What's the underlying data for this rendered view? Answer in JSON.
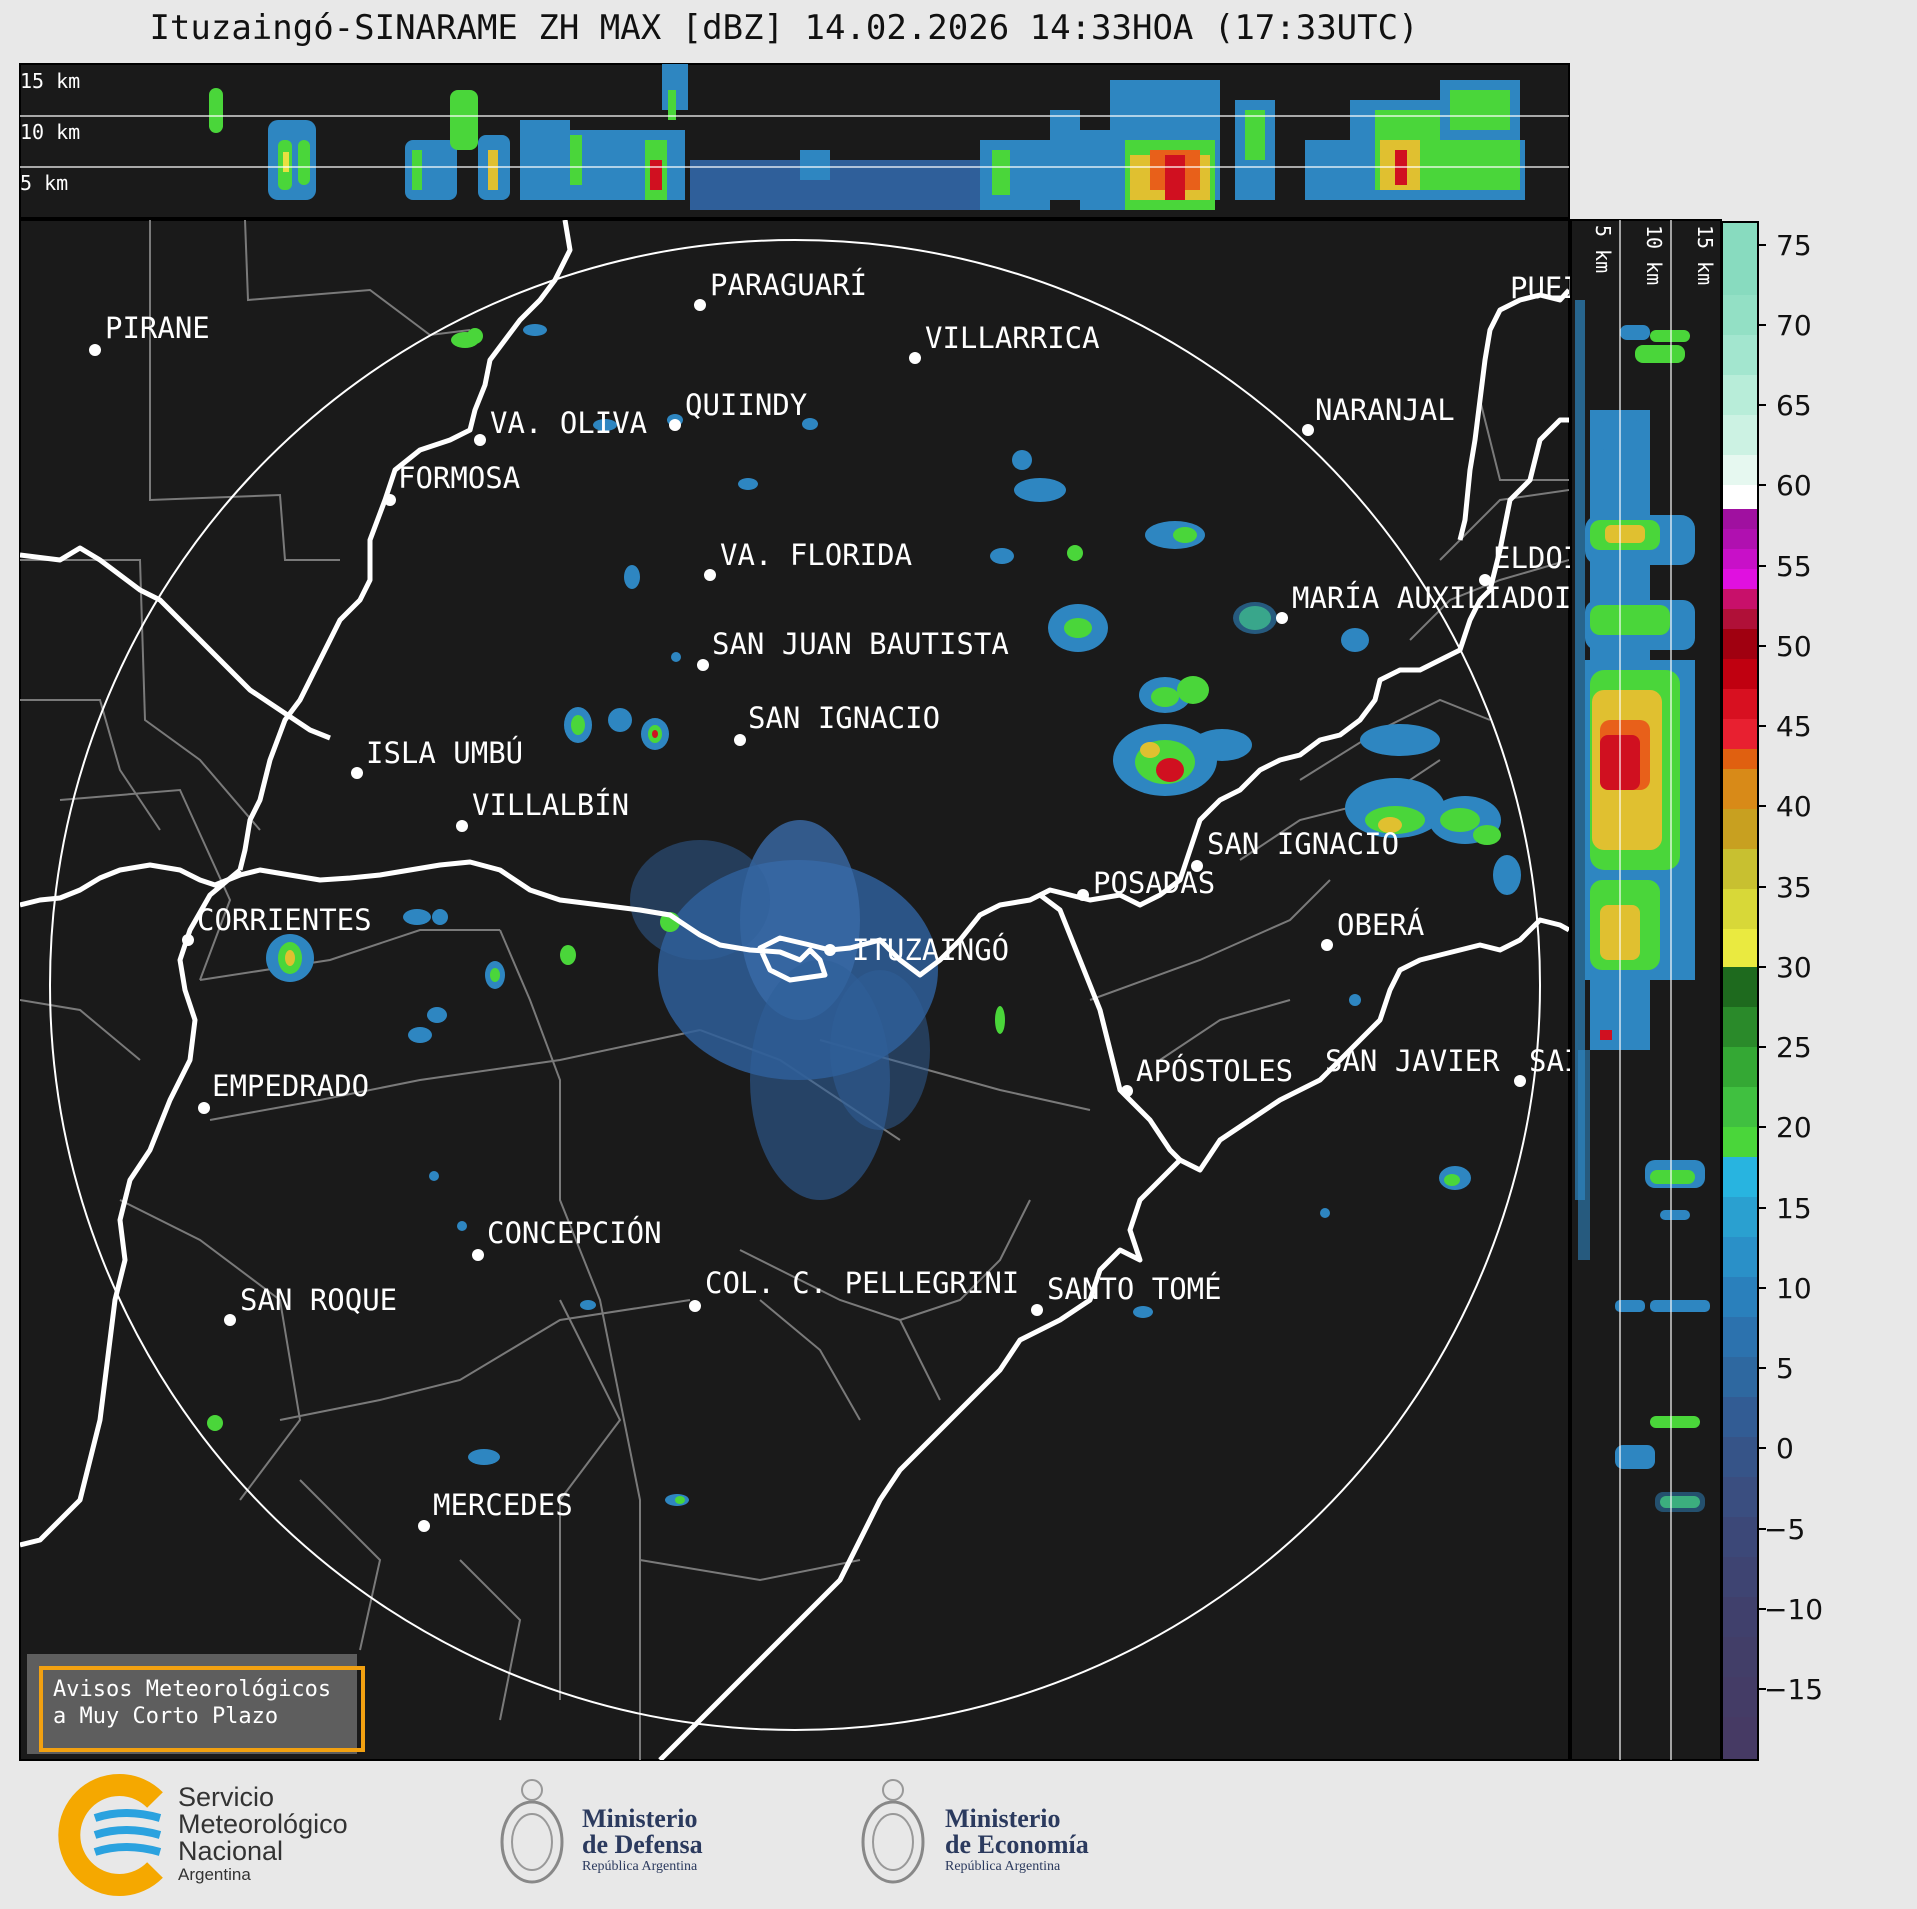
{
  "title": "Ituzaingó-SINARAME ZH MAX [dBZ] 14.02.2026 14:33HOA (17:33UTC)",
  "top_panel": {
    "height_labels": [
      "15 km",
      "10 km",
      "5 km"
    ]
  },
  "side_panel": {
    "height_labels": [
      "5 km",
      "10 km",
      "15 km"
    ]
  },
  "colorbar": {
    "ticks": [
      "75",
      "70",
      "65",
      "60",
      "55",
      "50",
      "45",
      "40",
      "35",
      "30",
      "25",
      "20",
      "15",
      "10",
      "5",
      "0",
      "−5",
      "−10",
      "−15"
    ]
  },
  "places": {
    "pirane": "PIRANE",
    "paraguari": "PARAGUARÍ",
    "villarrica": "VILLARRICA",
    "quiindy": "QUIINDY",
    "va_oliva": "VA. OLIVA",
    "naranjal": "NARANJAL",
    "formosa": "FORMOSA",
    "puerto": "PUEI",
    "va_florida": "VA. FLORIDA",
    "eldorado": "ELDOI",
    "maria_auxiliadora": "MARÍA AUXILIADOI",
    "san_juan_bautista": "SAN JUAN BAUTISTA",
    "san_ignacio_py": "SAN IGNACIO",
    "isla_umbu": "ISLA UMBÚ",
    "villalbin": "VILLALBÍN",
    "san_ignacio_ar": "SAN IGNACIO",
    "posadas": "POSADAS",
    "corrientes": "CORRIENTES",
    "ituzaingo": "ITUZAINGÓ",
    "obera": "OBERÁ",
    "empedrado": "EMPEDRADO",
    "apostoles": "APÓSTOLES",
    "san_javier": "SAN JAVIER",
    "san_right": "SAI",
    "concepcion": "CONCEPCIÓN",
    "san_roque": "SAN ROQUE",
    "col_pellegrini": "COL. C. PELLEGRINI",
    "santo_tome": "SANTO TOMÉ",
    "mercedes": "MERCEDES"
  },
  "warning_box": {
    "line1": "Avisos Meteorológicos",
    "line2": "a Muy Corto Plazo"
  },
  "logos": {
    "smn_line1": "Servicio",
    "smn_line2": "Meteorológico",
    "smn_line3": "Nacional",
    "smn_line4": "Argentina",
    "defensa_line1": "Ministerio",
    "defensa_line2": "de Defensa",
    "defensa_line3": "República Argentina",
    "economia_line1": "Ministerio",
    "economia_line2": "de Economía",
    "economia_line3": "República Argentina"
  },
  "colors": {
    "map_bg": "#1a1a1a",
    "river": "#ffffff",
    "boundary": "#7a7a7a",
    "warn_border": "#f2a111"
  }
}
